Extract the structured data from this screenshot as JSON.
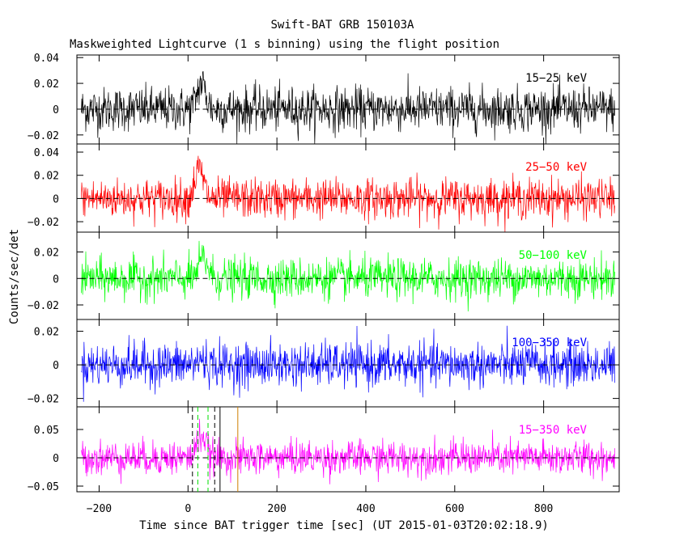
{
  "chart_data": {
    "type": "line",
    "title": "Swift-BAT GRB 150103A",
    "subtitle": "Maskweighted Lightcurve (1 s binning) using the flight position",
    "xlabel": "Time since BAT trigger time [sec] (UT 2015-01-03T20:02:18.9)",
    "ylabel": "Counts/sec/det",
    "xlim": [
      -250,
      970
    ],
    "x_ticks": [
      -200,
      0,
      200,
      400,
      600,
      800
    ],
    "x_tick_labels": [
      "−200",
      "0",
      "200",
      "400",
      "600",
      "800"
    ],
    "data_x_range": [
      -240,
      960
    ],
    "burst_window": [
      10,
      60
    ],
    "panels": [
      {
        "name": "15-25 keV",
        "label": "15−25 keV",
        "color": "#000000",
        "ylim": [
          -0.027,
          0.042
        ],
        "y_ticks": [
          -0.02,
          0,
          0.02,
          0.04
        ],
        "y_tick_labels": [
          "−0.02",
          "0",
          "0.02",
          "0.04"
        ],
        "noise_sigma": 0.0085,
        "peak": 0.02,
        "peak_time": 30
      },
      {
        "name": "25-50 keV",
        "label": "25−50 keV",
        "color": "#ff0000",
        "ylim": [
          -0.029,
          0.047
        ],
        "y_ticks": [
          -0.02,
          0,
          0.02,
          0.04
        ],
        "y_tick_labels": [
          "−0.02",
          "0",
          "0.02",
          "0.04"
        ],
        "noise_sigma": 0.0085,
        "peak": 0.025,
        "peak_time": 25
      },
      {
        "name": "50-100 keV",
        "label": "50−100 keV",
        "color": "#00ff00",
        "ylim": [
          -0.031,
          0.035
        ],
        "y_ticks": [
          -0.02,
          0,
          0.02
        ],
        "y_tick_labels": [
          "−0.02",
          "0",
          "0.02"
        ],
        "noise_sigma": 0.0075,
        "peak": 0.015,
        "peak_time": 35
      },
      {
        "name": "100-350 keV",
        "label": "100−350 keV",
        "color": "#0000ff",
        "ylim": [
          -0.025,
          0.027
        ],
        "y_ticks": [
          -0.02,
          0,
          0.02
        ],
        "y_tick_labels": [
          "−0.02",
          "0",
          "0.02"
        ],
        "noise_sigma": 0.0065,
        "peak": 0.003,
        "peak_time": 30
      },
      {
        "name": "15-350 keV",
        "label": "15−350 keV",
        "color": "#ff00ff",
        "ylim": [
          -0.06,
          0.09
        ],
        "y_ticks": [
          -0.05,
          0,
          0.05
        ],
        "y_tick_labels": [
          "−0.05",
          "0",
          "0.05"
        ],
        "noise_sigma": 0.015,
        "peak": 0.04,
        "peak_time": 30
      }
    ],
    "markers": [
      {
        "name": "t90-start",
        "x": 10,
        "style": "dashed",
        "color": "#000000"
      },
      {
        "name": "t90-end",
        "x": 60,
        "style": "dashed",
        "color": "#000000"
      },
      {
        "name": "t50-start",
        "x": 22,
        "style": "dashed",
        "color": "#00dd00"
      },
      {
        "name": "t50-end",
        "x": 45,
        "style": "dashed",
        "color": "#00dd00"
      },
      {
        "name": "tstop",
        "x": 72,
        "style": "solid",
        "color": "#000000"
      },
      {
        "name": "orbit-marker",
        "x": 112,
        "style": "solid",
        "color": "#d08000"
      }
    ]
  }
}
